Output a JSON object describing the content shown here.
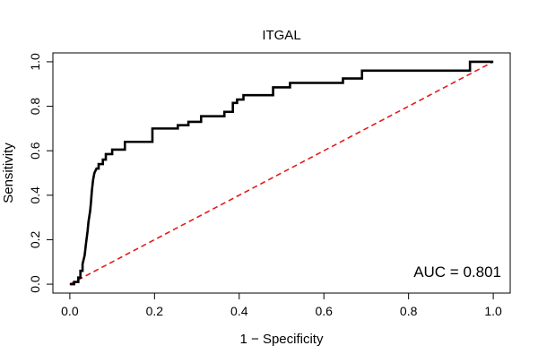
{
  "chart_data": {
    "type": "line",
    "title": "ITGAL",
    "xlabel": "1 − Specificity",
    "ylabel": "Sensitivity",
    "xlim": [
      -0.04,
      1.04
    ],
    "ylim": [
      -0.04,
      1.04
    ],
    "x_ticks": [
      0.0,
      0.2,
      0.4,
      0.6,
      0.8,
      1.0
    ],
    "x_tick_labels": [
      "0.0",
      "0.2",
      "0.4",
      "0.6",
      "0.8",
      "1.0"
    ],
    "y_ticks": [
      0.0,
      0.2,
      0.4,
      0.6,
      0.8,
      1.0
    ],
    "y_tick_labels": [
      "0.0",
      "0.2",
      "0.4",
      "0.6",
      "0.8",
      "1.0"
    ],
    "grid": false,
    "annotation": "AUC = 0.801",
    "series": [
      {
        "color": "#000000",
        "points": [
          [
            0.0,
            0.0
          ],
          [
            0.01,
            0.0
          ],
          [
            0.01,
            0.01
          ],
          [
            0.02,
            0.01
          ],
          [
            0.02,
            0.03
          ],
          [
            0.025,
            0.03
          ],
          [
            0.025,
            0.06
          ],
          [
            0.03,
            0.06
          ],
          [
            0.03,
            0.09
          ],
          [
            0.035,
            0.13
          ],
          [
            0.038,
            0.18
          ],
          [
            0.042,
            0.24
          ],
          [
            0.044,
            0.28
          ],
          [
            0.048,
            0.33
          ],
          [
            0.05,
            0.37
          ],
          [
            0.052,
            0.42
          ],
          [
            0.055,
            0.47
          ],
          [
            0.058,
            0.5
          ],
          [
            0.063,
            0.52
          ],
          [
            0.068,
            0.52
          ],
          [
            0.068,
            0.54
          ],
          [
            0.078,
            0.54
          ],
          [
            0.078,
            0.56
          ],
          [
            0.085,
            0.56
          ],
          [
            0.085,
            0.585
          ],
          [
            0.1,
            0.585
          ],
          [
            0.1,
            0.605
          ],
          [
            0.13,
            0.605
          ],
          [
            0.13,
            0.64
          ],
          [
            0.195,
            0.64
          ],
          [
            0.195,
            0.7
          ],
          [
            0.255,
            0.7
          ],
          [
            0.255,
            0.715
          ],
          [
            0.28,
            0.715
          ],
          [
            0.28,
            0.73
          ],
          [
            0.31,
            0.73
          ],
          [
            0.31,
            0.755
          ],
          [
            0.365,
            0.755
          ],
          [
            0.365,
            0.775
          ],
          [
            0.385,
            0.775
          ],
          [
            0.385,
            0.815
          ],
          [
            0.395,
            0.815
          ],
          [
            0.395,
            0.83
          ],
          [
            0.41,
            0.83
          ],
          [
            0.41,
            0.85
          ],
          [
            0.48,
            0.85
          ],
          [
            0.48,
            0.885
          ],
          [
            0.52,
            0.885
          ],
          [
            0.52,
            0.905
          ],
          [
            0.645,
            0.905
          ],
          [
            0.645,
            0.925
          ],
          [
            0.69,
            0.925
          ],
          [
            0.69,
            0.96
          ],
          [
            0.945,
            0.96
          ],
          [
            0.945,
            1.0
          ],
          [
            1.0,
            1.0
          ]
        ]
      }
    ],
    "reference_line": {
      "from": [
        0,
        0
      ],
      "to": [
        1,
        1
      ],
      "color": "#e41a1c",
      "style": "dashed"
    }
  }
}
